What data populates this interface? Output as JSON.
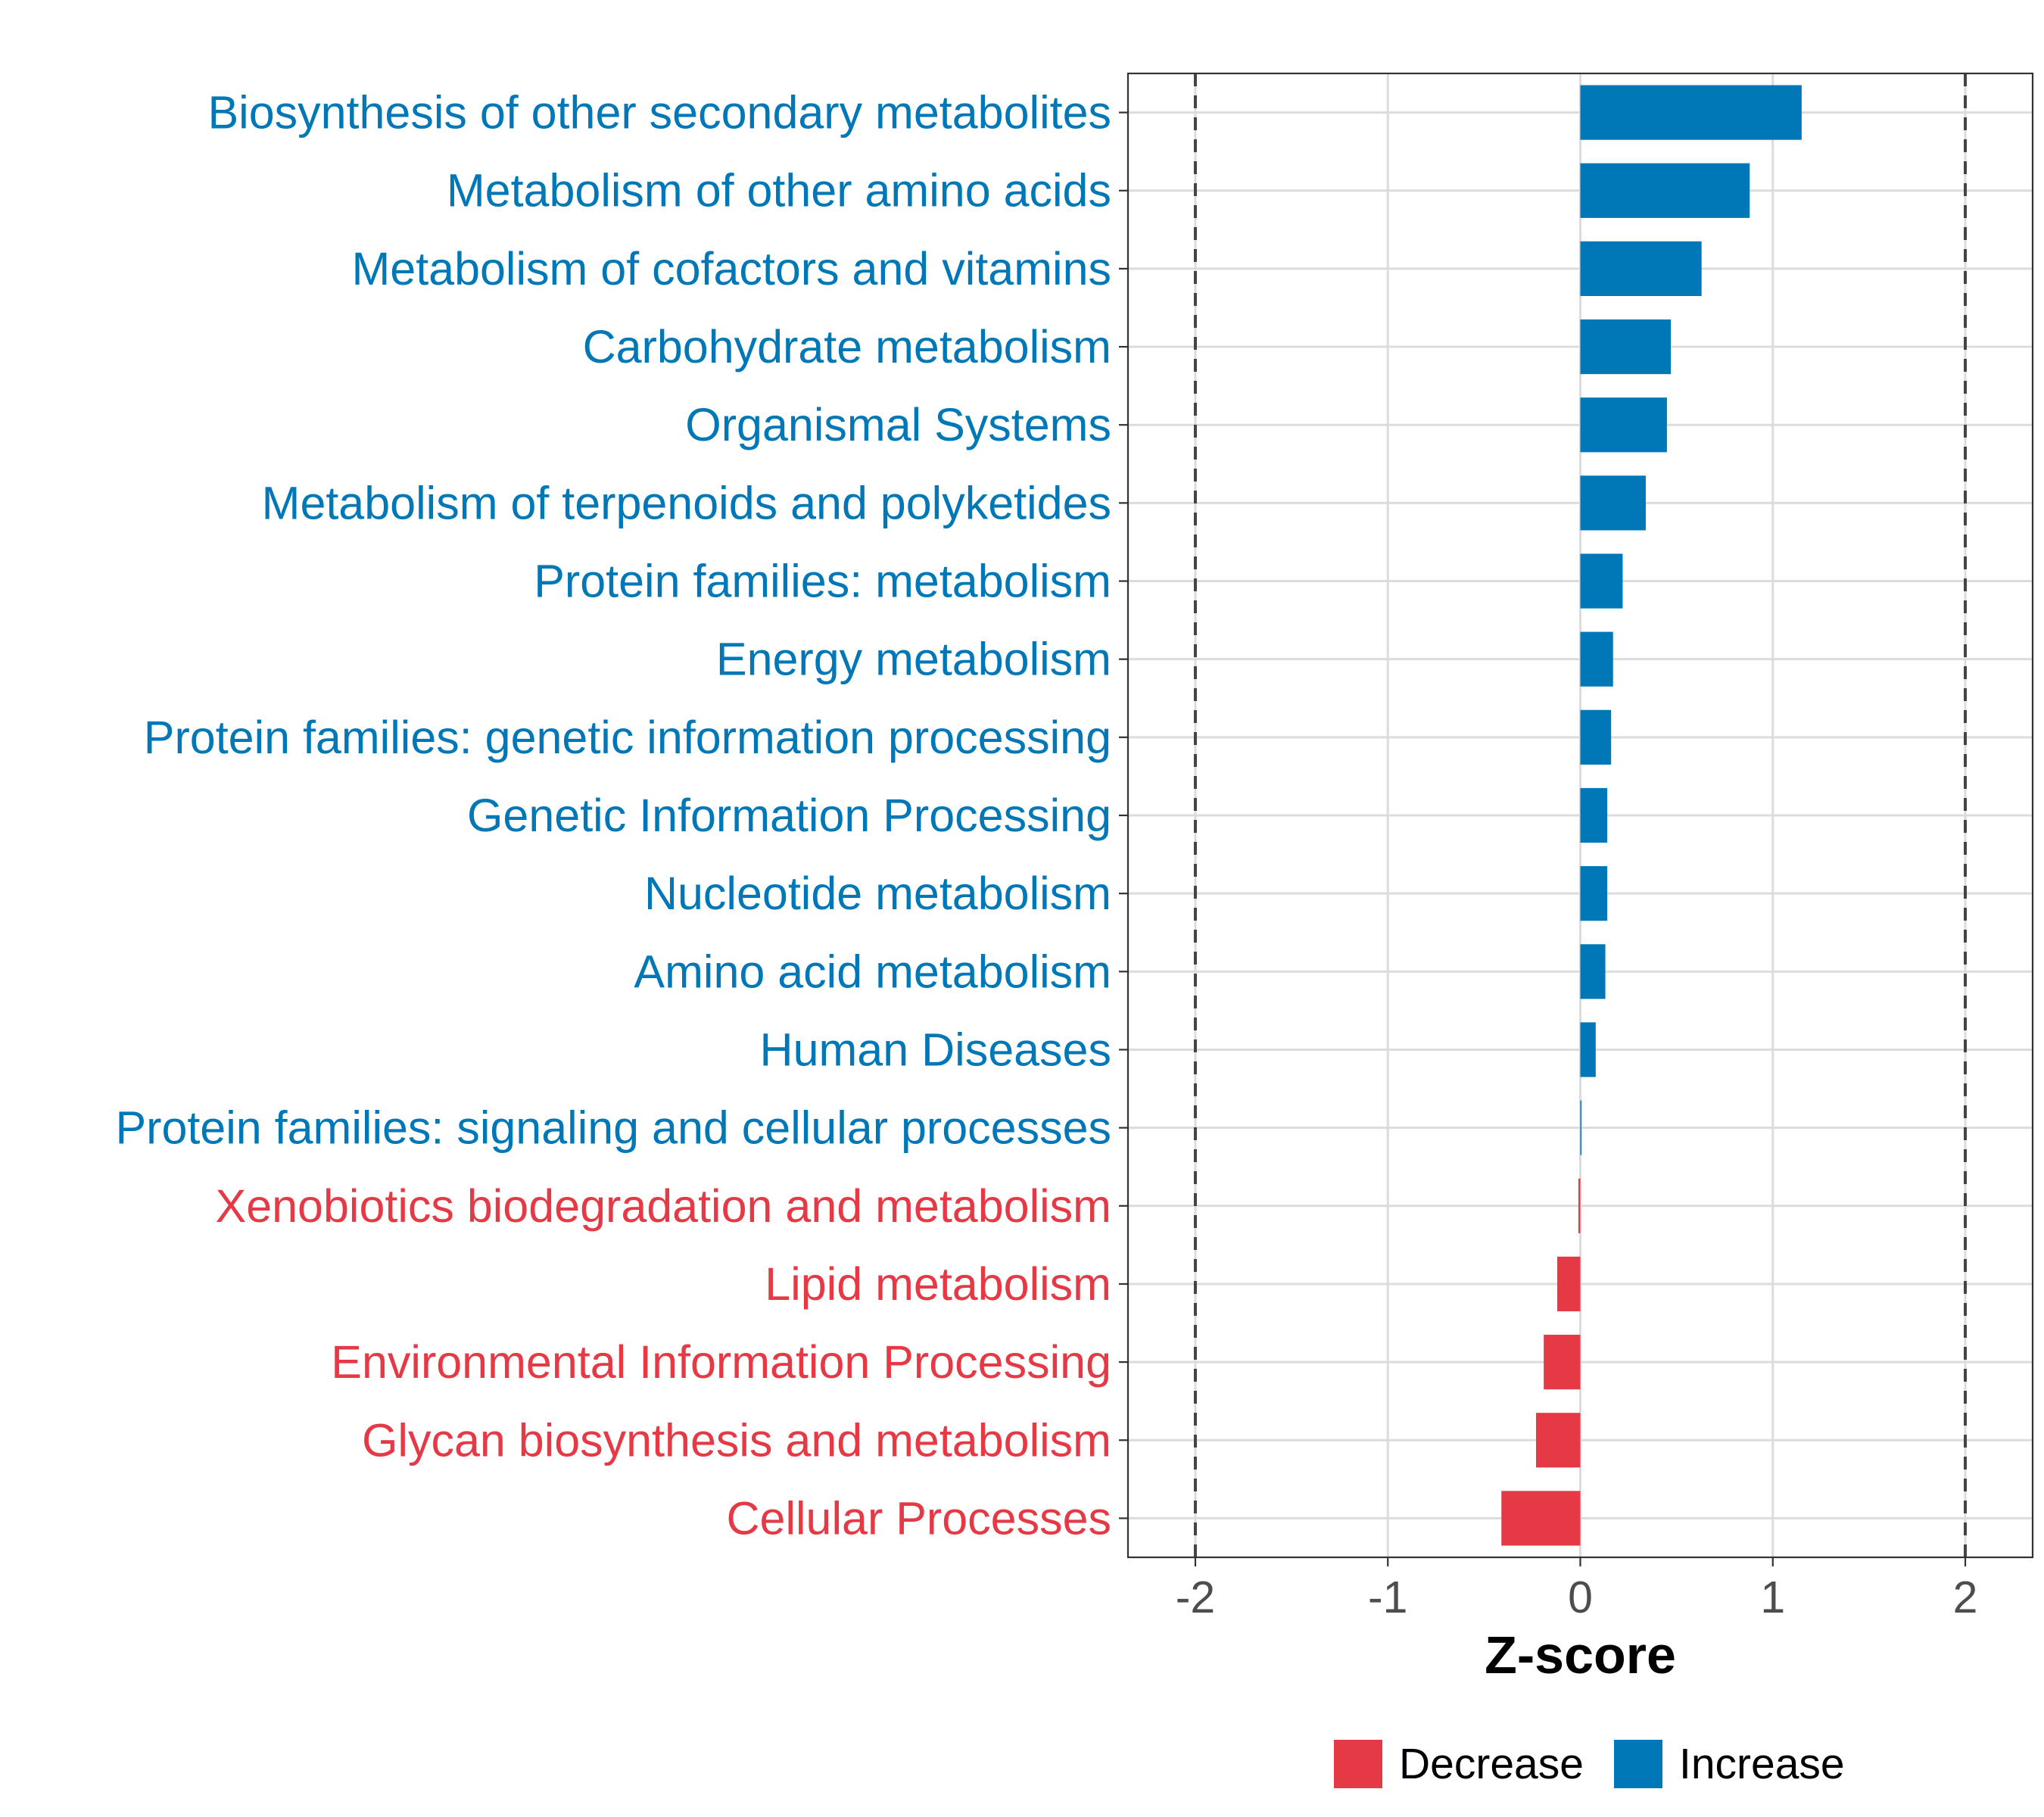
{
  "chart_data": {
    "type": "bar",
    "orientation": "horizontal",
    "title": "",
    "xlabel": "Z-score",
    "ylabel": "",
    "xlim": [
      -2.35,
      2.35
    ],
    "xticks": [
      -2,
      -1,
      0,
      1,
      2
    ],
    "xtick_labels": [
      "-2",
      "-1",
      "0",
      "1",
      "2"
    ],
    "reference_lines": [
      -2,
      2
    ],
    "grid": true,
    "legend_position": "bottom",
    "colors": {
      "Decrease": "#e63946",
      "Increase": "#0077b6"
    },
    "legend": [
      {
        "label": "Decrease",
        "color": "#e63946"
      },
      {
        "label": "Increase",
        "color": "#0077b6"
      }
    ],
    "categories": [
      "Biosynthesis of other secondary metabolites",
      "Metabolism of other amino acids",
      "Metabolism of cofactors and vitamins",
      "Carbohydrate metabolism",
      "Organismal Systems",
      "Metabolism of terpenoids and polyketides",
      "Protein families: metabolism",
      "Energy metabolism",
      "Protein families: genetic information processing",
      "Genetic Information Processing",
      "Nucleotide metabolism",
      "Amino acid metabolism",
      "Human Diseases",
      "Protein families: signaling and cellular processes",
      "Xenobiotics biodegradation and metabolism",
      "Lipid metabolism",
      "Environmental Information Processing",
      "Glycan biosynthesis and metabolism",
      "Cellular Processes"
    ],
    "values": [
      1.15,
      0.88,
      0.63,
      0.47,
      0.45,
      0.34,
      0.22,
      0.17,
      0.16,
      0.14,
      0.14,
      0.13,
      0.08,
      0.005,
      -0.01,
      -0.12,
      -0.19,
      -0.23,
      -0.41
    ],
    "groups": [
      "Increase",
      "Increase",
      "Increase",
      "Increase",
      "Increase",
      "Increase",
      "Increase",
      "Increase",
      "Increase",
      "Increase",
      "Increase",
      "Increase",
      "Increase",
      "Increase",
      "Decrease",
      "Decrease",
      "Decrease",
      "Decrease",
      "Decrease"
    ]
  }
}
